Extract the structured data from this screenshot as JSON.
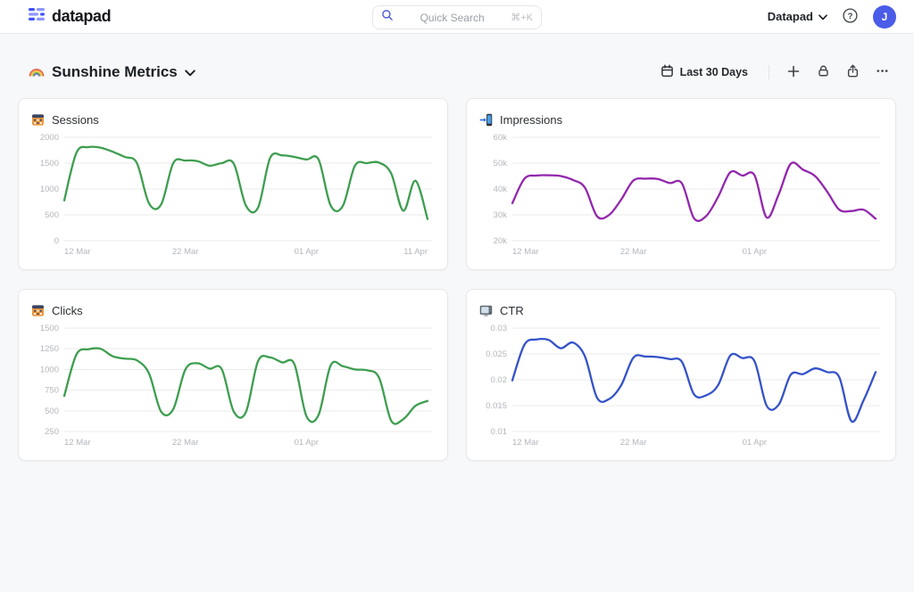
{
  "header": {
    "brand": "datapad",
    "search": {
      "placeholder": "Quick Search",
      "shortcut": "⌘+K"
    },
    "workspace_label": "Datapad",
    "avatar_initial": "J"
  },
  "page": {
    "title": "Sunshine Metrics",
    "date_range_label": "Last 30 Days"
  },
  "colors": {
    "brand_blue": "#4353ff",
    "avatar_blue": "#4a5ce8",
    "series_green": "#3d9e4f",
    "series_purple": "#9227ad",
    "series_blue": "#3452c9",
    "page_bg": "#f7f8fa",
    "grid_line": "#ebebeb",
    "tick_text": "#b3b6bb"
  },
  "chart_data": [
    {
      "type": "line",
      "title": "Sessions",
      "icon": "abacus-icon",
      "color": "#3d9e4f",
      "x_labels": [
        "12 Mar",
        "22 Mar",
        "01 Apr",
        "11 Apr"
      ],
      "y_ticks": [
        "2000",
        "1500",
        "1000",
        "500",
        "0"
      ],
      "ylim": [
        0,
        2000
      ],
      "grid": true,
      "legend": "none",
      "values": [
        780,
        1700,
        1810,
        1800,
        1720,
        1620,
        1500,
        720,
        700,
        1500,
        1550,
        1540,
        1450,
        1500,
        1490,
        680,
        640,
        1600,
        1650,
        1620,
        1570,
        1570,
        680,
        670,
        1450,
        1500,
        1510,
        1300,
        580,
        1160,
        420
      ]
    },
    {
      "type": "line",
      "title": "Impressions",
      "icon": "phone-arrow-icon",
      "color": "#9227ad",
      "x_labels": [
        "12 Mar",
        "22 Mar",
        "01 Apr"
      ],
      "y_ticks": [
        "60k",
        "50k",
        "40k",
        "30k",
        "20k"
      ],
      "ylim": [
        20000,
        60000
      ],
      "grid": true,
      "legend": "none",
      "values": [
        34500,
        44000,
        45200,
        45300,
        45000,
        43500,
        40500,
        29400,
        30000,
        36000,
        43300,
        44000,
        43900,
        42300,
        42200,
        28700,
        29500,
        37000,
        46500,
        45200,
        45300,
        29000,
        38000,
        49800,
        47500,
        45000,
        39000,
        32000,
        31500,
        32000,
        28500
      ]
    },
    {
      "type": "line",
      "title": "Clicks",
      "icon": "abacus-icon",
      "color": "#3d9e4f",
      "x_labels": [
        "12 Mar",
        "22 Mar",
        "01 Apr"
      ],
      "y_ticks": [
        "1500",
        "1250",
        "1000",
        "750",
        "500",
        "250"
      ],
      "ylim": [
        250,
        1500
      ],
      "grid": true,
      "legend": "none",
      "values": [
        680,
        1180,
        1245,
        1250,
        1160,
        1130,
        1110,
        950,
        490,
        520,
        1000,
        1075,
        1010,
        1005,
        490,
        485,
        1100,
        1145,
        1085,
        1065,
        435,
        450,
        1050,
        1040,
        1000,
        990,
        900,
        380,
        400,
        560,
        620
      ]
    },
    {
      "type": "line",
      "title": "CTR",
      "icon": "monitor-icon",
      "color": "#3452c9",
      "x_labels": [
        "12 Mar",
        "22 Mar",
        "01 Apr"
      ],
      "y_ticks": [
        "0.03",
        "0.025",
        "0.02",
        "0.015",
        "0.01"
      ],
      "ylim": [
        0.01,
        0.03
      ],
      "grid": true,
      "legend": "none",
      "values": [
        0.0199,
        0.0268,
        0.0278,
        0.0277,
        0.0261,
        0.0272,
        0.0245,
        0.0165,
        0.0163,
        0.019,
        0.0243,
        0.0245,
        0.0244,
        0.024,
        0.0235,
        0.0172,
        0.017,
        0.019,
        0.0247,
        0.0242,
        0.0236,
        0.015,
        0.0152,
        0.021,
        0.0211,
        0.0222,
        0.0215,
        0.0205,
        0.012,
        0.016,
        0.0215
      ]
    }
  ]
}
